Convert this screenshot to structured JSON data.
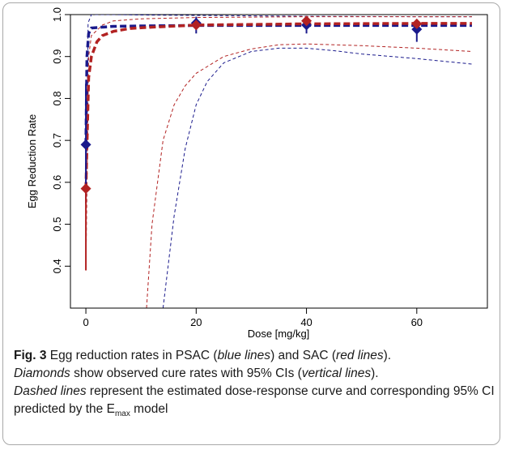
{
  "chart_data": {
    "type": "line",
    "title": "",
    "xlabel": "Dose [mg/kg]",
    "ylabel": "Egg Reduction Rate",
    "xlim": [
      -2.8,
      72.8
    ],
    "ylim": [
      0.3,
      1.0
    ],
    "xticks": [
      0,
      20,
      40,
      60
    ],
    "yticks": [
      0.4,
      0.5,
      0.6,
      0.7,
      0.8,
      0.9,
      1.0
    ],
    "grid": false,
    "legend": "none",
    "series": [
      {
        "group": "PSAC",
        "color": "#1a1a8c",
        "observed": [
          {
            "x": 0,
            "y": 0.69,
            "ci": [
              0.55,
              0.835
            ]
          },
          {
            "x": 20,
            "y": 0.98,
            "ci": [
              0.955,
              0.995
            ]
          },
          {
            "x": 40,
            "y": 0.975,
            "ci": [
              0.955,
              0.99
            ]
          },
          {
            "x": 60,
            "y": 0.965,
            "ci": [
              0.935,
              0.985
            ]
          }
        ],
        "fit": {
          "x": [
            0,
            0.2,
            0.5,
            1,
            5,
            10,
            20,
            40,
            60,
            70
          ],
          "y": [
            0.69,
            0.9,
            0.955,
            0.968,
            0.972,
            0.973,
            0.974,
            0.974,
            0.974,
            0.974
          ]
        },
        "ci_upper": {
          "x": [
            0,
            0.4,
            1,
            5,
            10,
            20,
            40,
            60,
            70
          ],
          "y": [
            0.55,
            0.98,
            1.0,
            1.0,
            0.999,
            0.998,
            0.996,
            0.995,
            0.995
          ]
        },
        "ci_lower": {
          "x": [
            14,
            16,
            18,
            20,
            22,
            25,
            30,
            35,
            40,
            45,
            50,
            60,
            70
          ],
          "y": [
            0.3,
            0.52,
            0.68,
            0.785,
            0.84,
            0.885,
            0.912,
            0.92,
            0.92,
            0.914,
            0.906,
            0.895,
            0.882
          ]
        }
      },
      {
        "group": "SAC",
        "color": "#b22222",
        "observed": [
          {
            "x": 0,
            "y": 0.585,
            "ci": [
              0.39,
              0.585
            ]
          },
          {
            "x": 20,
            "y": 0.975,
            "ci": [
              0.965,
              0.985
            ]
          },
          {
            "x": 40,
            "y": 0.985,
            "ci": [
              0.975,
              0.99
            ]
          },
          {
            "x": 60,
            "y": 0.978,
            "ci": [
              0.97,
              0.985
            ]
          }
        ],
        "fit": {
          "x": [
            0,
            0.5,
            1,
            2,
            3,
            5,
            8,
            12,
            20,
            40,
            60,
            70
          ],
          "y": [
            0.585,
            0.85,
            0.9,
            0.935,
            0.95,
            0.96,
            0.967,
            0.97,
            0.975,
            0.978,
            0.979,
            0.979
          ]
        },
        "ci_upper": {
          "x": [
            0,
            0.5,
            1,
            3,
            5,
            10,
            20,
            40,
            60,
            70
          ],
          "y": [
            0.39,
            0.9,
            0.95,
            0.975,
            0.985,
            0.99,
            0.993,
            0.995,
            0.995,
            0.995
          ]
        },
        "ci_lower": {
          "x": [
            11,
            12,
            14,
            16,
            18,
            20,
            25,
            30,
            35,
            40,
            50,
            60,
            70
          ],
          "y": [
            0.3,
            0.5,
            0.7,
            0.785,
            0.83,
            0.86,
            0.9,
            0.918,
            0.928,
            0.93,
            0.926,
            0.92,
            0.912
          ]
        }
      }
    ]
  },
  "caption": {
    "label": "Fig. 3",
    "p1": " Egg reduction rates in PSAC (",
    "blue": "blue lines",
    "p2": ") and SAC (",
    "red": "red lines",
    "p3": ").",
    "diamonds": "Diamonds",
    "p4": " show observed cure rates with 95% CIs (",
    "vertical": "vertical lines",
    "p5": ").",
    "dashed": "Dashed lines",
    "p6": " represent the estimated dose-response curve and corresponding 95% CI predicted by the E",
    "sub": "max",
    "p7": " model"
  }
}
